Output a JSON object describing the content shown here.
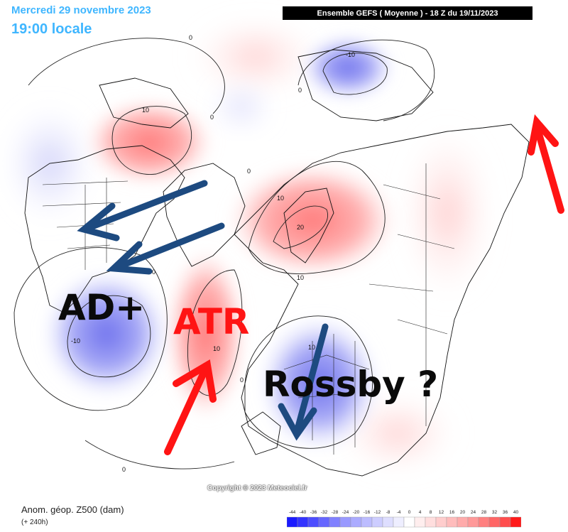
{
  "header": {
    "date": "Mercredi 29 novembre 2023",
    "local_time": "19:00 locale",
    "run_info": "Ensemble GEFS  ( Moyenne )  -  18 Z du 19/11/2023"
  },
  "annotations": {
    "ad_plus": "AD+",
    "atr": "ATR",
    "rossby": "Rossby ?"
  },
  "contour_labels": [
    "0",
    "0",
    "0",
    "0",
    "-10",
    "10",
    "10",
    "20",
    "10",
    "-10",
    "10",
    "0",
    "10",
    "0",
    "0"
  ],
  "copyright": "Copyright © 2023 Meteociel.fr",
  "footer": {
    "field": "Anom. géop. Z500 (dam)",
    "lead": "(+ 240h)"
  },
  "legend": {
    "ticks": [
      "-44",
      "-40",
      "-36",
      "-32",
      "-28",
      "-24",
      "-20",
      "-16",
      "-12",
      "-8",
      "-4",
      "0",
      "4",
      "8",
      "12",
      "16",
      "20",
      "24",
      "28",
      "32",
      "36",
      "40"
    ],
    "colors": [
      "#1a1aff",
      "#3333ff",
      "#4d4dff",
      "#6666ff",
      "#8080ff",
      "#9999ff",
      "#ababff",
      "#bcbcff",
      "#cdcdff",
      "#dedeff",
      "#eeeeff",
      "#ffffff",
      "#ffeeee",
      "#ffdede",
      "#ffcdcd",
      "#ffbcbc",
      "#ffabab",
      "#ff9999",
      "#ff8080",
      "#ff6666",
      "#ff4d4d",
      "#ff1a1a"
    ]
  },
  "colors": {
    "header_text": "#3fb6ff",
    "arrow_red": "#ff1414",
    "arrow_blue": "#1d4a80",
    "positive_anomaly": "#ff9c9c",
    "negative_anomaly": "#8a8cf0"
  }
}
